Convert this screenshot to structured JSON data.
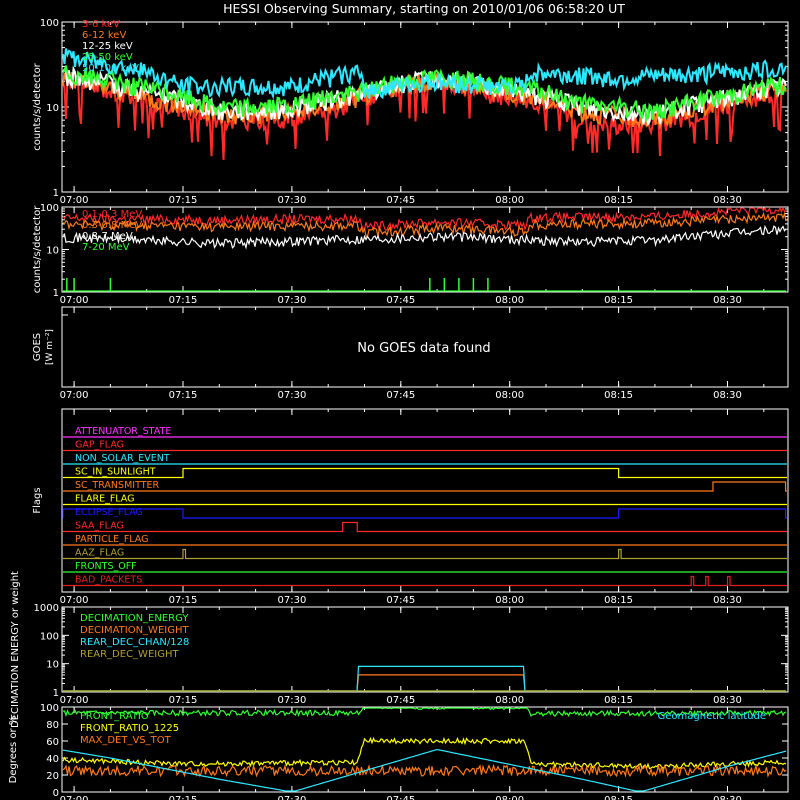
{
  "title": "HESSI Observing Summary, starting on 2010/01/06 06:58:20 UT",
  "time_ticks": [
    "07:00",
    "07:15",
    "07:30",
    "07:45",
    "08:00",
    "08:15",
    "08:30"
  ],
  "colors": {
    "red": "#ff2a2a",
    "orange": "#ff7a1a",
    "yellow": "#ffff00",
    "green": "#33ff33",
    "cyan": "#2ee8ff",
    "magenta": "#ff33ff",
    "blue": "#1a1aff",
    "olive": "#b0a030",
    "white": "#ffffff",
    "darkred": "#e02020"
  },
  "chart_data": [
    {
      "type": "line",
      "title": "HESSI Observing Summary, starting on 2010/01/06 06:58:20 UT",
      "ylabel": "counts/s/detector",
      "ylog": true,
      "ylim": [
        1,
        100
      ],
      "ytick_labels": [
        "1",
        "10",
        "100"
      ],
      "xlim": [
        "06:58:20",
        "08:38:20"
      ],
      "series": [
        {
          "name": "3-6 keV",
          "color": "#ff2a2a",
          "x": [
            "06:58",
            "07:05",
            "07:10",
            "07:15",
            "07:20",
            "07:30",
            "07:35",
            "07:39",
            "07:45",
            "07:50",
            "07:58",
            "08:02",
            "08:06",
            "08:10",
            "08:15",
            "08:20",
            "08:25",
            "08:30",
            "08:35",
            "08:38"
          ],
          "y": [
            20,
            16,
            12,
            9,
            7,
            7.5,
            9,
            12,
            17,
            20,
            14,
            13,
            10,
            7,
            6,
            6.5,
            8,
            11,
            14,
            16
          ]
        },
        {
          "name": "6-12 keV",
          "color": "#ff7a1a",
          "x": [
            "06:58",
            "07:10",
            "07:20",
            "07:30",
            "07:39",
            "07:45",
            "07:50",
            "08:02",
            "08:10",
            "08:20",
            "08:30",
            "08:38"
          ],
          "y": [
            22,
            13,
            8,
            8.5,
            13,
            18,
            21,
            14,
            9,
            7,
            12,
            17
          ]
        },
        {
          "name": "12-25 keV",
          "color": "#ffffff",
          "x": [
            "06:58",
            "07:10",
            "07:20",
            "07:30",
            "07:39",
            "07:45",
            "07:50",
            "08:02",
            "08:10",
            "08:20",
            "08:30",
            "08:38"
          ],
          "y": [
            24,
            15,
            9,
            9.5,
            14,
            19,
            22,
            15,
            10,
            8,
            13,
            18
          ]
        },
        {
          "name": "25-50 keV",
          "color": "#33ff33",
          "x": [
            "06:58",
            "07:10",
            "07:20",
            "07:30",
            "07:39",
            "07:45",
            "07:50",
            "08:02",
            "08:10",
            "08:20",
            "08:30",
            "08:38"
          ],
          "y": [
            26,
            17,
            10,
            10.5,
            15,
            20,
            23,
            17,
            11,
            9,
            14,
            19
          ]
        },
        {
          "name": "50-100 keV",
          "color": "#2ee8ff",
          "x": [
            "06:58",
            "07:05",
            "07:15",
            "07:30",
            "07:39",
            "07:40",
            "07:50",
            "08:02",
            "08:03",
            "08:15",
            "08:30",
            "08:38"
          ],
          "y": [
            40,
            33,
            18,
            17,
            26,
            16,
            20,
            17,
            26,
            22,
            26,
            30
          ]
        }
      ]
    },
    {
      "type": "line",
      "ylabel": "counts/s/detector",
      "ylog": true,
      "ylim": [
        1,
        100
      ],
      "ytick_labels": [
        "1",
        "10",
        "100"
      ],
      "series": [
        {
          "name": "0.1-0.3 MeV",
          "color": "#ff2a2a",
          "x": [
            "06:58",
            "07:20",
            "07:39",
            "07:40",
            "07:50",
            "08:02",
            "08:03",
            "08:20",
            "08:38"
          ],
          "y": [
            55,
            50,
            55,
            35,
            45,
            38,
            58,
            60,
            95
          ]
        },
        {
          "name": "0.3-0.8 MeV",
          "color": "#ff7a1a",
          "x": [
            "06:58",
            "07:20",
            "07:39",
            "07:40",
            "07:50",
            "08:02",
            "08:03",
            "08:20",
            "08:38"
          ],
          "y": [
            40,
            35,
            38,
            25,
            33,
            27,
            40,
            42,
            60
          ]
        },
        {
          "name": "0.8-7 MeV",
          "color": "#ffffff",
          "x": [
            "06:58",
            "07:20",
            "07:45",
            "07:50",
            "08:10",
            "08:20",
            "08:38"
          ],
          "y": [
            20,
            14,
            19,
            21,
            15,
            17,
            30
          ]
        },
        {
          "name": "7-20 MeV",
          "color": "#33ff33",
          "x": [
            "06:58",
            "08:38"
          ],
          "y": [
            1,
            1
          ]
        }
      ]
    },
    {
      "type": "line",
      "ylabel": "GOES",
      "ylabel2": "[W m⁻²]",
      "message": "No GOES data found",
      "series": []
    },
    {
      "type": "line",
      "ylabel": "Flags",
      "series": [
        {
          "name": "ATTENUATOR_STATE",
          "color": "#ff33ff",
          "on_intervals": []
        },
        {
          "name": "GAP_FLAG",
          "color": "#ff2a2a",
          "on_intervals": []
        },
        {
          "name": "NON_SOLAR_EVENT",
          "color": "#2ee8ff",
          "on_intervals": []
        },
        {
          "name": "SC_IN_SUNLIGHT",
          "color": "#ffff00",
          "on_intervals": [
            [
              "07:15",
              "08:15"
            ]
          ]
        },
        {
          "name": "SC_TRANSMITTER",
          "color": "#ff7a1a",
          "on_intervals": [
            [
              "08:28",
              "08:38"
            ]
          ]
        },
        {
          "name": "FLARE_FLAG",
          "color": "#ffff00",
          "on_intervals": []
        },
        {
          "name": "ECLIPSE_FLAG",
          "color": "#1a1aff",
          "on_intervals": [
            [
              "06:58",
              "07:15"
            ],
            [
              "08:15",
              "08:38"
            ]
          ]
        },
        {
          "name": "SAA_FLAG",
          "color": "#ff2a2a",
          "on_intervals": [
            [
              "07:37",
              "07:39"
            ]
          ]
        },
        {
          "name": "PARTICLE_FLAG",
          "color": "#ff7a1a",
          "on_intervals": []
        },
        {
          "name": "AAZ_FLAG",
          "color": "#b0a030",
          "on_intervals": [
            [
              "07:15",
              "07:15"
            ],
            [
              "08:15",
              "08:15"
            ]
          ]
        },
        {
          "name": "FRONTS_OFF",
          "color": "#33ff33",
          "on_intervals": []
        },
        {
          "name": "BAD_PACKETS",
          "color": "#e02020",
          "on_intervals": [
            [
              "08:25",
              "08:25"
            ],
            [
              "08:27",
              "08:27"
            ],
            [
              "08:30",
              "08:30"
            ]
          ]
        }
      ]
    },
    {
      "type": "line",
      "ylabel": "DECIMATION ENERGY or weight",
      "ylog": true,
      "ylim": [
        1,
        1000
      ],
      "ytick_labels": [
        "1",
        "10",
        "100",
        "1000"
      ],
      "series": [
        {
          "name": "DECIMATION_ENERGY",
          "color": "#33ff33",
          "x": [
            "06:58",
            "08:38"
          ],
          "y": [
            1,
            1
          ]
        },
        {
          "name": "DECIMATION_WEIGHT",
          "color": "#ff7a1a",
          "x": [
            "06:58",
            "07:39",
            "07:39",
            "08:02",
            "08:02",
            "08:38"
          ],
          "y": [
            1,
            1,
            4,
            4,
            1,
            1
          ]
        },
        {
          "name": "REAR_DEC_CHAN/128",
          "color": "#2ee8ff",
          "x": [
            "06:58",
            "07:39",
            "07:39",
            "08:02",
            "08:02",
            "08:38"
          ],
          "y": [
            1,
            1,
            8,
            8,
            1,
            1
          ]
        },
        {
          "name": "REAR_DEC_WEIGHT",
          "color": "#b0a030",
          "x": [
            "06:58",
            "08:38"
          ],
          "y": [
            1,
            1
          ]
        }
      ]
    },
    {
      "type": "line",
      "ylabel": "Degrees or %",
      "ylim": [
        0,
        100
      ],
      "ytick_labels": [
        "0",
        "20",
        "40",
        "60",
        "80",
        "100"
      ],
      "annotation": "Geomagnetic latitude",
      "series": [
        {
          "name": "FRONT_RATIO",
          "color": "#33ff33",
          "x": [
            "06:58",
            "07:39",
            "07:40",
            "08:02",
            "08:03",
            "08:38"
          ],
          "y": [
            93,
            93,
            100,
            100,
            92,
            93
          ]
        },
        {
          "name": "FRONT_RATIO_1225",
          "color": "#ffff00",
          "x": [
            "06:58",
            "07:15",
            "07:39",
            "07:40",
            "08:02",
            "08:03",
            "08:20",
            "08:38"
          ],
          "y": [
            38,
            33,
            35,
            60,
            60,
            33,
            30,
            35
          ]
        },
        {
          "name": "MAX_DET_VS_TOT",
          "color": "#ff7a1a",
          "x": [
            "06:58",
            "08:38"
          ],
          "y": [
            25,
            25
          ]
        },
        {
          "name": "Geomagnetic latitude",
          "color": "#2ee8ff",
          "x": [
            "06:58",
            "07:05",
            "07:20",
            "07:30",
            "07:50",
            "08:10",
            "08:18",
            "08:30",
            "08:38"
          ],
          "y": [
            50,
            40,
            15,
            0,
            50,
            15,
            0,
            30,
            48
          ]
        }
      ]
    }
  ]
}
